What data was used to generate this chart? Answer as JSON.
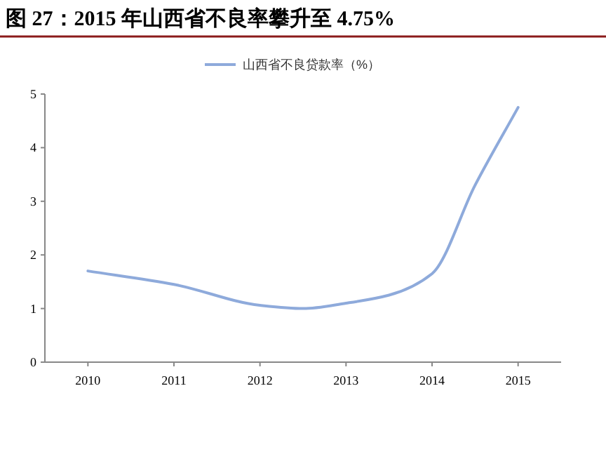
{
  "chart_data": {
    "type": "line",
    "title": "图 27：2015 年山西省不良率攀升至 4.75%",
    "x": [
      2010,
      2011,
      2012,
      2012.5,
      2013,
      2013.5,
      2014,
      2014.5,
      2015
    ],
    "series": [
      {
        "name": "山西省不良贷款率（%）",
        "color": "#8eaadb",
        "values": [
          1.7,
          1.45,
          1.06,
          1.0,
          1.1,
          1.25,
          1.65,
          3.3,
          4.75
        ]
      }
    ],
    "xlim": [
      2009.5,
      2015.5
    ],
    "xticks": [
      2010,
      2011,
      2012,
      2013,
      2014,
      2015
    ],
    "ylim": [
      0,
      5
    ],
    "yticks": [
      0,
      1,
      2,
      3,
      4,
      5
    ],
    "grid": false,
    "legend": "top",
    "marker": "none",
    "line_style": "solid"
  }
}
